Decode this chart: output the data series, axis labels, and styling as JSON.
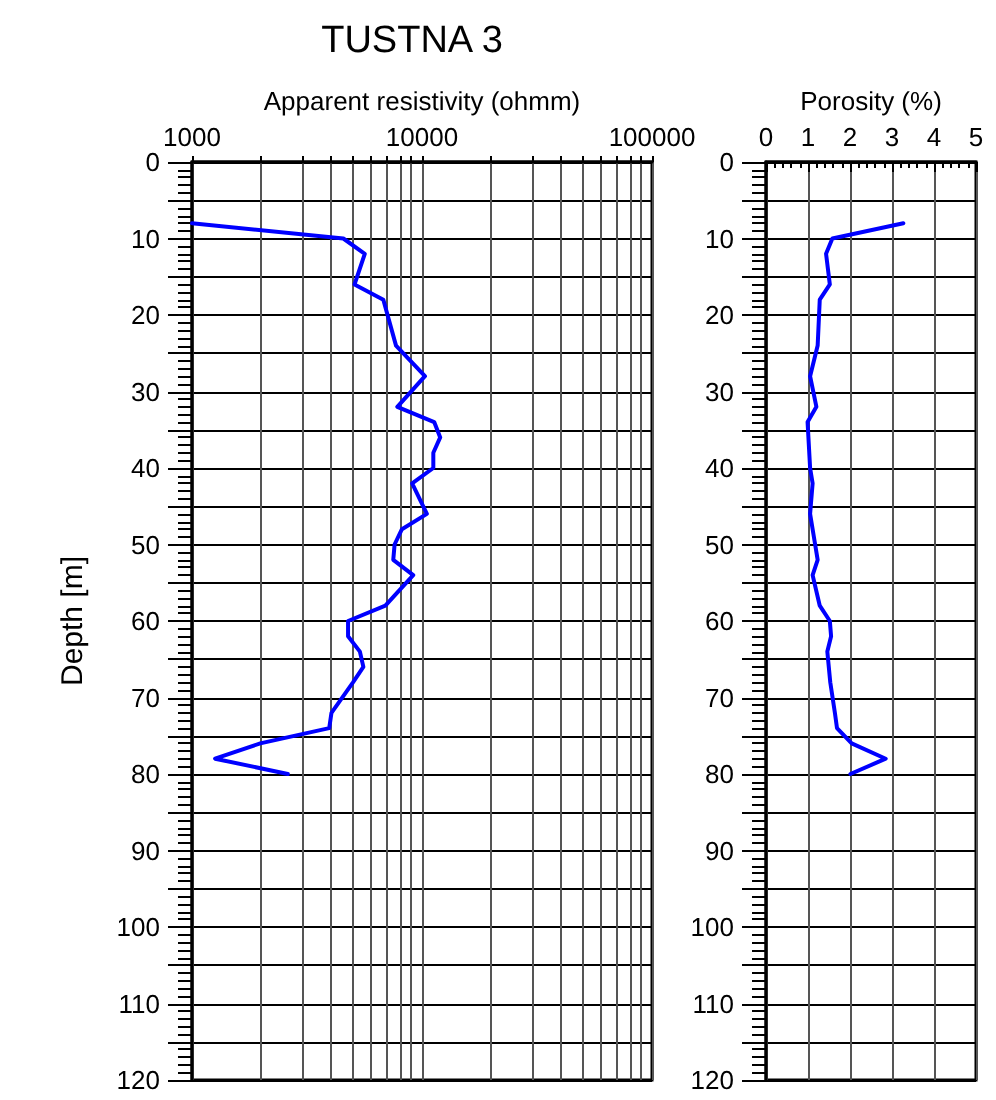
{
  "chart_data": [
    {
      "type": "line",
      "title": "TUSTNA 3",
      "xlabel": "Apparent resistivity (ohmm)",
      "ylabel": "Depth [m]",
      "log": "x",
      "grid": true,
      "marker": "none",
      "line_style": "solid",
      "xlim": [
        1000,
        100000
      ],
      "xticks": [
        1000,
        {
          "value": 2000,
          "label": null
        },
        {
          "value": 3000,
          "label": null
        },
        {
          "value": 4000,
          "label": null
        },
        {
          "value": 5000,
          "label": null
        },
        {
          "value": 6000,
          "label": null
        },
        {
          "value": 7000,
          "label": null
        },
        {
          "value": 8000,
          "label": null
        },
        {
          "value": 9000,
          "label": null
        },
        10000,
        {
          "value": 20000,
          "label": null
        },
        {
          "value": 30000,
          "label": null
        },
        {
          "value": 40000,
          "label": null
        },
        {
          "value": 50000,
          "label": null
        },
        {
          "value": 60000,
          "label": null
        },
        {
          "value": 70000,
          "label": null
        },
        {
          "value": 80000,
          "label": null
        },
        {
          "value": 90000,
          "label": null
        },
        100000
      ],
      "ylim": [
        120,
        0
      ],
      "yticks": [
        0,
        {
          "value": 5,
          "label": null
        },
        10,
        {
          "value": 15,
          "label": null
        },
        20,
        {
          "value": 25,
          "label": null
        },
        30,
        {
          "value": 35,
          "label": null
        },
        40,
        {
          "value": 45,
          "label": null
        },
        50,
        {
          "value": 55,
          "label": null
        },
        60,
        {
          "value": 65,
          "label": null
        },
        70,
        {
          "value": 75,
          "label": null
        },
        80,
        {
          "value": 85,
          "label": null
        },
        90,
        {
          "value": 95,
          "label": null
        },
        100,
        {
          "value": 105,
          "label": null
        },
        110,
        {
          "value": 115,
          "label": null
        },
        120
      ],
      "series": [
        {
          "color": "#0000ff",
          "x": [
            1000,
            4550,
            5640,
            5090,
            6790,
            7710,
            10300,
            7810,
            11300,
            12000,
            11200,
            11200,
            9060,
            10500,
            8180,
            7600,
            7500,
            9160,
            6930,
            4770,
            4770,
            5370,
            5560,
            5020,
            4040,
            3950,
            1980,
            1260,
            2610
          ],
          "values": [
            8,
            10,
            12,
            16,
            18,
            24,
            28,
            32,
            34,
            36,
            38,
            40,
            42,
            46,
            48,
            50,
            52,
            54,
            58,
            60,
            62,
            64,
            66,
            68,
            72,
            74,
            76,
            78,
            80
          ]
        }
      ]
    },
    {
      "type": "line",
      "xlabel": "Porosity (%)",
      "grid": true,
      "marker": "none",
      "line_style": "solid",
      "xlim": [
        0,
        5
      ],
      "xticks": [
        0,
        1,
        2,
        3,
        4,
        5
      ],
      "ylim": [
        120,
        0
      ],
      "yticks": [
        0,
        {
          "value": 5,
          "label": null
        },
        10,
        {
          "value": 15,
          "label": null
        },
        20,
        {
          "value": 25,
          "label": null
        },
        30,
        {
          "value": 35,
          "label": null
        },
        40,
        {
          "value": 45,
          "label": null
        },
        50,
        {
          "value": 55,
          "label": null
        },
        60,
        {
          "value": 65,
          "label": null
        },
        70,
        {
          "value": 75,
          "label": null
        },
        80,
        {
          "value": 85,
          "label": null
        },
        90,
        {
          "value": 95,
          "label": null
        },
        100,
        {
          "value": 105,
          "label": null
        },
        110,
        {
          "value": 115,
          "label": null
        },
        120
      ],
      "series": [
        {
          "color": "#0000ff",
          "x": [
            3.27,
            1.58,
            1.43,
            1.52,
            1.28,
            1.23,
            1.05,
            1.2,
            0.99,
            1.05,
            1.11,
            1.05,
            1.17,
            1.23,
            1.11,
            1.28,
            1.52,
            1.55,
            1.46,
            1.53,
            1.64,
            1.69,
            2.04,
            2.85,
            2.01
          ],
          "values": [
            8,
            10,
            12,
            16,
            18,
            24,
            28,
            32,
            34,
            40,
            42,
            46,
            50,
            52,
            54,
            58,
            60,
            62,
            64,
            68,
            72,
            74,
            76,
            78,
            80
          ]
        }
      ]
    }
  ]
}
